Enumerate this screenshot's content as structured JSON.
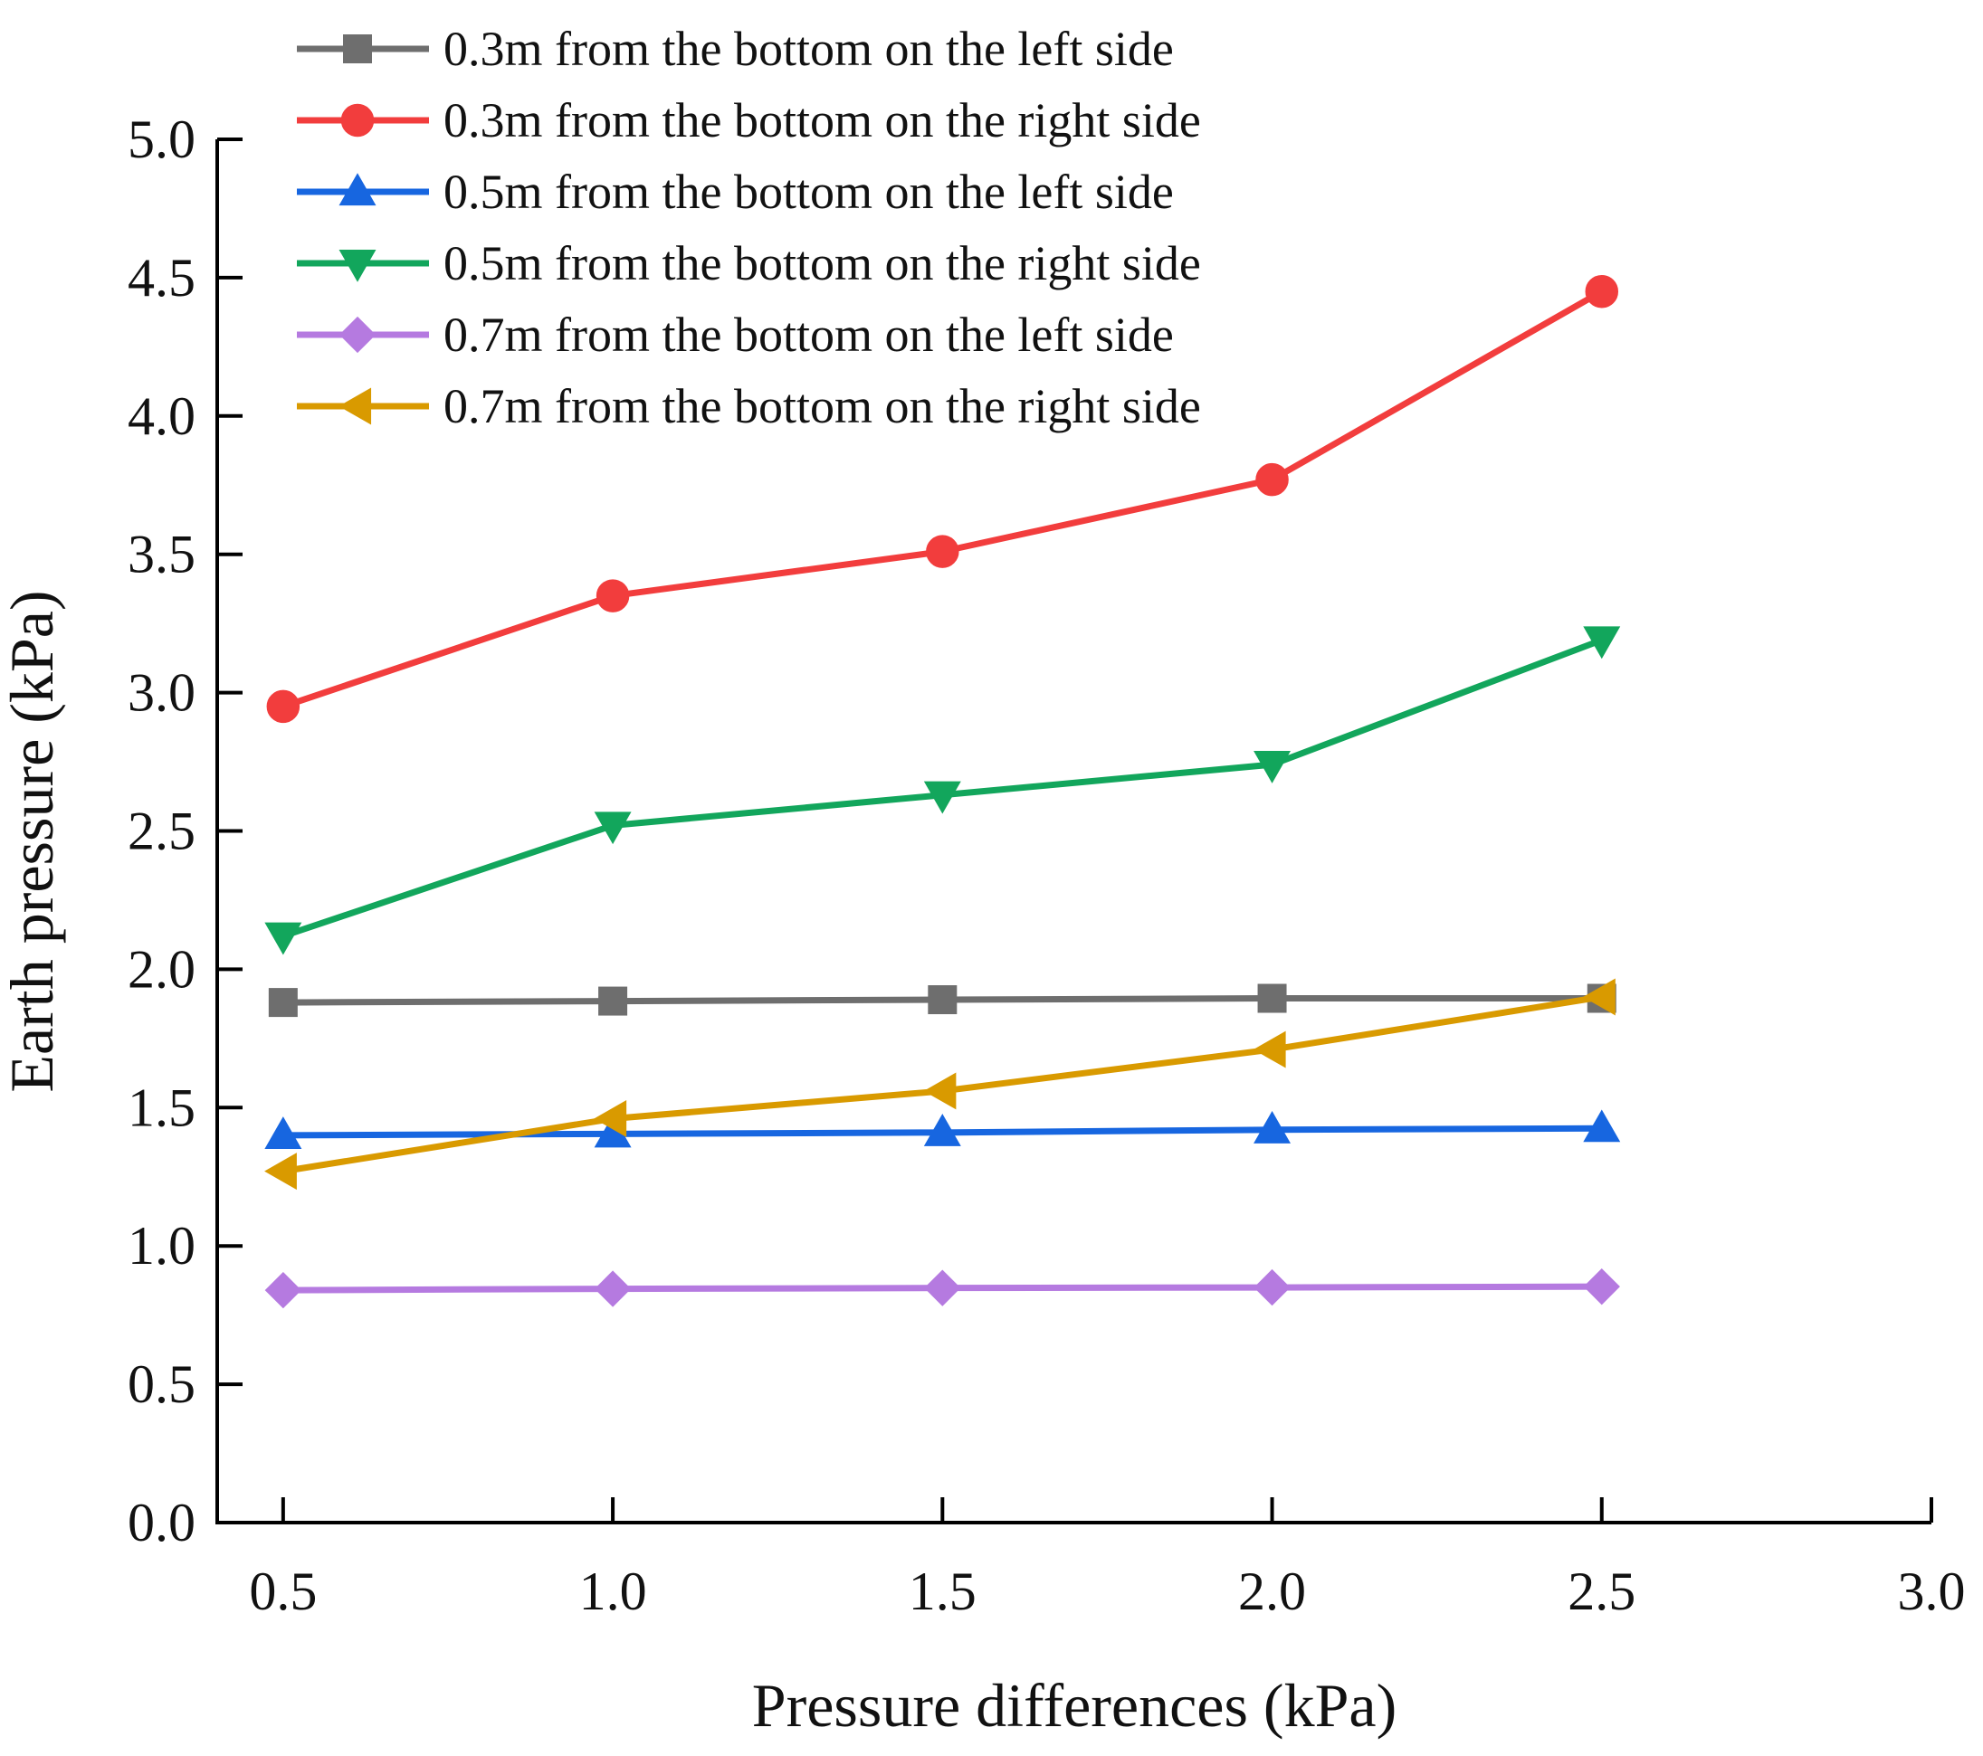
{
  "chart_data": {
    "type": "line",
    "xlabel": "Pressure differences (kPa)",
    "ylabel": "Earth pressure (kPa)",
    "xlim": [
      0.4,
      3.0
    ],
    "ylim": [
      0.0,
      5.0
    ],
    "x_ticks": [
      "0.5",
      "1.0",
      "1.5",
      "2.0",
      "2.5",
      "3.0"
    ],
    "x_tick_values": [
      0.5,
      1.0,
      1.5,
      2.0,
      2.5,
      3.0
    ],
    "y_ticks": [
      "0.0",
      "0.5",
      "1.0",
      "1.5",
      "2.0",
      "2.5",
      "3.0",
      "3.5",
      "4.0",
      "4.5",
      "5.0"
    ],
    "y_tick_values": [
      0.0,
      0.5,
      1.0,
      1.5,
      2.0,
      2.5,
      3.0,
      3.5,
      4.0,
      4.5,
      5.0
    ],
    "legend_position": "top-left",
    "x": [
      0.5,
      1.0,
      1.5,
      2.0,
      2.5
    ],
    "series": [
      {
        "name": "0.3m from the bottom on the left side",
        "color": "#6e6e6e",
        "marker": "square",
        "values": [
          1.88,
          1.885,
          1.89,
          1.895,
          1.895
        ]
      },
      {
        "name": "0.3m from the bottom on the right side",
        "color": "#f23d3d",
        "marker": "circle",
        "values": [
          2.95,
          3.35,
          3.51,
          3.77,
          4.45
        ]
      },
      {
        "name": "0.5m from the bottom on the left side",
        "color": "#1766e0",
        "marker": "triangle-up",
        "values": [
          1.4,
          1.405,
          1.41,
          1.42,
          1.425
        ]
      },
      {
        "name": "0.5m from the bottom on the right side",
        "color": "#12a65c",
        "marker": "triangle-down",
        "values": [
          2.12,
          2.52,
          2.63,
          2.74,
          3.19
        ]
      },
      {
        "name": "0.7m from the bottom on the left side",
        "color": "#b57ae0",
        "marker": "diamond",
        "values": [
          0.84,
          0.845,
          0.848,
          0.85,
          0.853
        ]
      },
      {
        "name": "0.7m from the bottom on the right side",
        "color": "#d99a00",
        "marker": "triangle-left",
        "values": [
          1.27,
          1.46,
          1.56,
          1.71,
          1.9
        ]
      }
    ]
  }
}
